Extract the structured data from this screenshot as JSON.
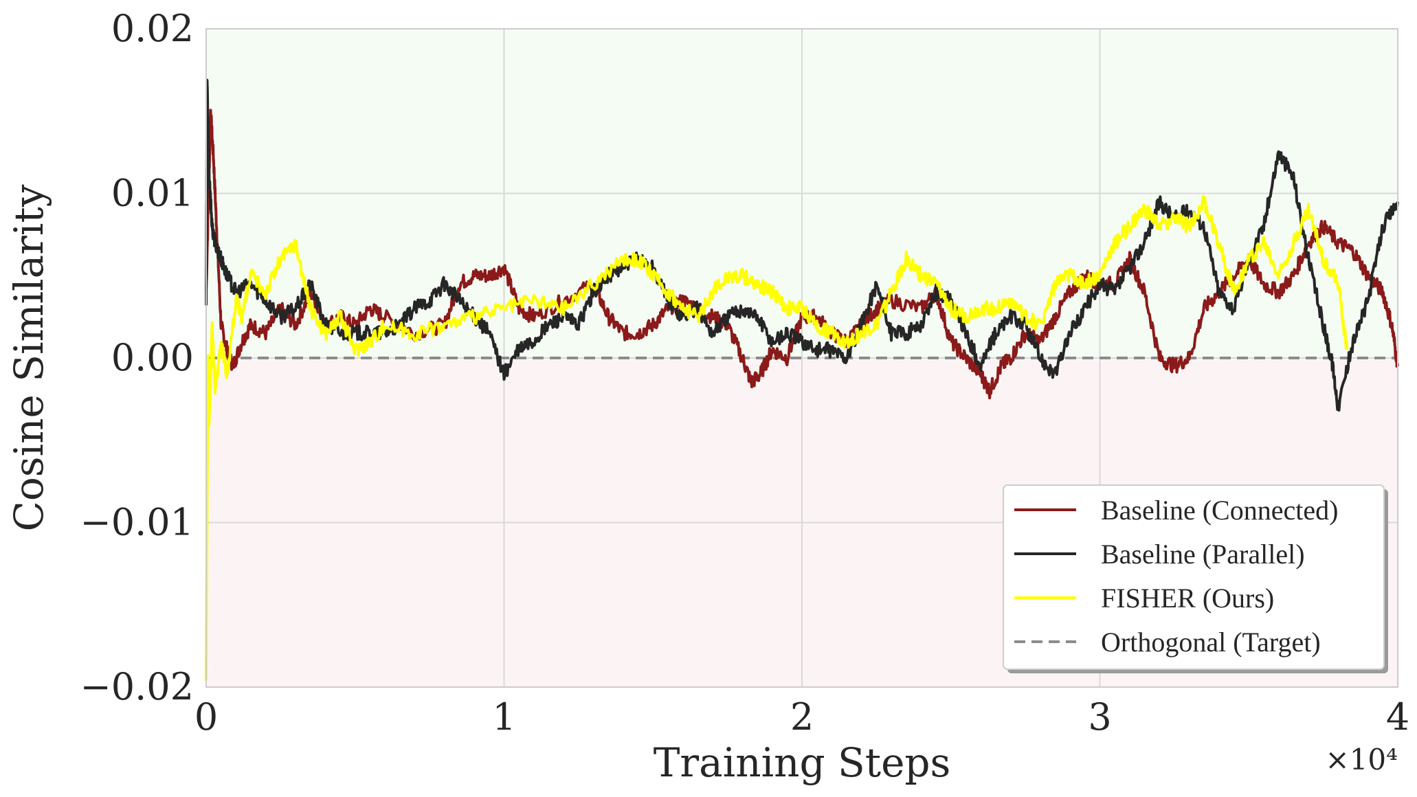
{
  "chart_data": {
    "type": "line",
    "title": "",
    "xlabel": "Training Steps",
    "ylabel": "Cosine Similarity",
    "x_offset_label": "×10⁴",
    "xlim": [
      0,
      4
    ],
    "ylim": [
      -0.02,
      0.02
    ],
    "x_ticks": [
      0,
      1,
      2,
      3,
      4
    ],
    "x_tick_labels": [
      "0",
      "1",
      "2",
      "3",
      "4"
    ],
    "y_ticks": [
      -0.02,
      -0.01,
      0.0,
      0.01,
      0.02
    ],
    "y_tick_labels": [
      "−0.02",
      "−0.01",
      "0.00",
      "0.01",
      "0.02"
    ],
    "grid": true,
    "legend_position": "lower-right",
    "shaded_regions": [
      {
        "from": 0.0,
        "to": 0.02,
        "color": "#f4fcf4"
      },
      {
        "from": -0.02,
        "to": 0.0,
        "color": "#fcf4f4"
      }
    ],
    "series": [
      {
        "name": "Baseline (Connected)",
        "color": "#8b1a1a",
        "style": "solid",
        "x": [
          0.0,
          0.015,
          0.025,
          0.035,
          0.05,
          0.07,
          0.09,
          0.12,
          0.15,
          0.2,
          0.25,
          0.3,
          0.35,
          0.4,
          0.45,
          0.5,
          0.55,
          0.6,
          0.7,
          0.8,
          0.85,
          0.9,
          0.95,
          1.0,
          1.05,
          1.1,
          1.2,
          1.3,
          1.35,
          1.4,
          1.45,
          1.5,
          1.55,
          1.6,
          1.65,
          1.7,
          1.75,
          1.8,
          1.83,
          1.86,
          1.9,
          1.95,
          2.0,
          2.05,
          2.1,
          2.15,
          2.2,
          2.25,
          2.3,
          2.4,
          2.45,
          2.5,
          2.55,
          2.6,
          2.63,
          2.67,
          2.7,
          2.75,
          2.8,
          2.85,
          2.9,
          2.95,
          3.0,
          3.05,
          3.1,
          3.15,
          3.2,
          3.25,
          3.3,
          3.35,
          3.4,
          3.45,
          3.5,
          3.55,
          3.6,
          3.65,
          3.7,
          3.75,
          3.8,
          3.85,
          3.9,
          3.95,
          3.98,
          4.0
        ],
        "y": [
          0.004,
          0.015,
          0.012,
          0.008,
          0.002,
          0.0005,
          -0.0005,
          0.001,
          0.002,
          0.0015,
          0.003,
          0.002,
          0.004,
          0.002,
          0.0025,
          0.002,
          0.003,
          0.0025,
          0.0015,
          0.002,
          0.0045,
          0.005,
          0.005,
          0.0055,
          0.003,
          0.0025,
          0.0035,
          0.0045,
          0.0025,
          0.0015,
          0.0015,
          0.002,
          0.003,
          0.0035,
          0.003,
          0.0025,
          0.002,
          0.0,
          -0.0015,
          -0.001,
          0.0005,
          0.0,
          0.0025,
          0.0025,
          0.0015,
          0.001,
          0.002,
          0.003,
          0.0035,
          0.003,
          0.004,
          0.001,
          0.0,
          -0.001,
          -0.002,
          -0.0005,
          0.0,
          0.0015,
          0.001,
          0.0025,
          0.004,
          0.005,
          0.0045,
          0.0045,
          0.006,
          0.004,
          0.0,
          -0.0005,
          0.0,
          0.003,
          0.004,
          0.005,
          0.006,
          0.0045,
          0.004,
          0.005,
          0.007,
          0.008,
          0.007,
          0.0065,
          0.005,
          0.004,
          0.002,
          -0.0005
        ]
      },
      {
        "name": "Baseline (Parallel)",
        "color": "#262626",
        "style": "solid",
        "x": [
          0.0,
          0.003,
          0.01,
          0.02,
          0.03,
          0.05,
          0.07,
          0.1,
          0.15,
          0.2,
          0.25,
          0.3,
          0.35,
          0.4,
          0.45,
          0.5,
          0.55,
          0.6,
          0.65,
          0.7,
          0.75,
          0.8,
          0.85,
          0.9,
          0.95,
          1.0,
          1.05,
          1.1,
          1.15,
          1.2,
          1.25,
          1.3,
          1.35,
          1.4,
          1.45,
          1.5,
          1.55,
          1.6,
          1.65,
          1.7,
          1.75,
          1.8,
          1.85,
          1.9,
          1.95,
          2.0,
          2.05,
          2.1,
          2.15,
          2.2,
          2.25,
          2.3,
          2.35,
          2.4,
          2.45,
          2.5,
          2.55,
          2.6,
          2.65,
          2.7,
          2.75,
          2.8,
          2.85,
          2.9,
          2.95,
          3.0,
          3.05,
          3.1,
          3.15,
          3.2,
          3.25,
          3.3,
          3.35,
          3.4,
          3.45,
          3.5,
          3.55,
          3.6,
          3.65,
          3.7,
          3.75,
          3.78,
          3.8,
          3.85,
          3.9,
          3.95,
          4.0
        ],
        "y": [
          0.003,
          0.017,
          0.011,
          0.008,
          0.007,
          0.006,
          0.005,
          0.004,
          0.0045,
          0.0035,
          0.0025,
          0.003,
          0.0045,
          0.002,
          0.0015,
          0.0015,
          0.0015,
          0.0015,
          0.002,
          0.003,
          0.0035,
          0.0045,
          0.0035,
          0.0025,
          0.0015,
          -0.001,
          0.0005,
          0.001,
          0.002,
          0.0025,
          0.002,
          0.004,
          0.005,
          0.0055,
          0.006,
          0.0055,
          0.0035,
          0.0025,
          0.003,
          0.0015,
          0.0025,
          0.003,
          0.0025,
          0.001,
          0.0015,
          0.001,
          0.0005,
          0.0005,
          0.0,
          0.002,
          0.0045,
          0.0015,
          0.0015,
          0.002,
          0.004,
          0.0035,
          0.0015,
          -0.0005,
          0.0015,
          0.0025,
          0.002,
          0.0,
          -0.001,
          0.0015,
          0.003,
          0.0045,
          0.004,
          0.0055,
          0.007,
          0.0095,
          0.0085,
          0.009,
          0.008,
          0.004,
          0.003,
          0.006,
          0.008,
          0.0125,
          0.011,
          0.006,
          0.002,
          -0.0003,
          -0.003,
          0.001,
          0.0035,
          0.008,
          0.0095
        ]
      },
      {
        "name": "FISHER (Ours)",
        "color": "#ffff00",
        "style": "solid",
        "x": [
          0.0,
          0.003,
          0.006,
          0.01,
          0.02,
          0.03,
          0.05,
          0.07,
          0.1,
          0.12,
          0.15,
          0.2,
          0.25,
          0.3,
          0.35,
          0.4,
          0.45,
          0.5,
          0.55,
          0.6,
          0.7,
          0.8,
          0.9,
          1.0,
          1.1,
          1.2,
          1.3,
          1.4,
          1.45,
          1.5,
          1.55,
          1.6,
          1.65,
          1.7,
          1.75,
          1.8,
          1.85,
          1.9,
          1.95,
          2.0,
          2.05,
          2.1,
          2.15,
          2.2,
          2.25,
          2.3,
          2.35,
          2.4,
          2.45,
          2.5,
          2.55,
          2.6,
          2.65,
          2.7,
          2.75,
          2.8,
          2.85,
          2.9,
          2.95,
          3.0,
          3.05,
          3.1,
          3.15,
          3.2,
          3.25,
          3.3,
          3.35,
          3.4,
          3.45,
          3.5,
          3.55,
          3.6,
          3.65,
          3.7,
          3.75,
          3.8,
          3.83
        ],
        "y": [
          -0.02,
          -0.01,
          0.0,
          -0.004,
          0.002,
          -0.002,
          0.001,
          -0.001,
          0.0035,
          0.0025,
          0.005,
          0.004,
          0.006,
          0.007,
          0.003,
          0.0015,
          0.0025,
          0.0005,
          0.001,
          0.002,
          0.0015,
          0.002,
          0.0025,
          0.003,
          0.0035,
          0.003,
          0.0045,
          0.006,
          0.006,
          0.005,
          0.004,
          0.003,
          0.0025,
          0.004,
          0.005,
          0.005,
          0.0045,
          0.004,
          0.003,
          0.003,
          0.002,
          0.0015,
          0.001,
          0.0015,
          0.002,
          0.004,
          0.006,
          0.005,
          0.0045,
          0.003,
          0.0025,
          0.003,
          0.003,
          0.0035,
          0.0025,
          0.002,
          0.0045,
          0.005,
          0.0045,
          0.005,
          0.007,
          0.008,
          0.009,
          0.008,
          0.0085,
          0.008,
          0.0095,
          0.007,
          0.004,
          0.006,
          0.007,
          0.005,
          0.007,
          0.009,
          0.006,
          0.0045,
          0.0005
        ]
      },
      {
        "name": "Orthogonal (Target)",
        "color": "#8c8c8c",
        "style": "dashed",
        "x": [
          0,
          4
        ],
        "y": [
          0,
          0
        ]
      }
    ]
  }
}
